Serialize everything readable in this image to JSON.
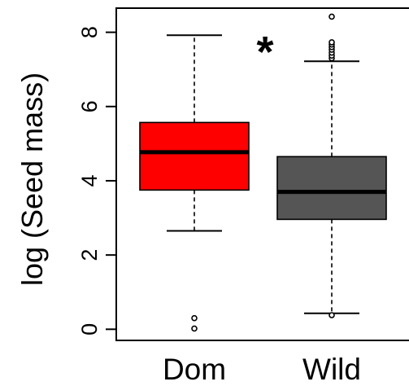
{
  "chart_data": {
    "type": "box",
    "title": "",
    "xlabel": "",
    "ylabel": "log (Seed mass)",
    "ylim": [
      -0.3,
      8.65
    ],
    "yticks": [
      0,
      2,
      4,
      6,
      8
    ],
    "tick_labels": [
      "0",
      "2",
      "4",
      "6",
      "8"
    ],
    "categories": [
      "Dom",
      "Wild"
    ],
    "annotation": "*",
    "grid": false,
    "boxes": [
      {
        "category": "Dom",
        "color": "#ff0000",
        "whisker_low": 2.65,
        "q1": 3.75,
        "median": 4.77,
        "q3": 5.57,
        "whisker_high": 7.92,
        "outliers": [
          0.3,
          0.02
        ]
      },
      {
        "category": "Wild",
        "color": "#555555",
        "whisker_low": 0.43,
        "q1": 2.96,
        "median": 3.7,
        "q3": 4.65,
        "whisker_high": 7.22,
        "outliers": [
          0.38,
          7.3,
          7.37,
          7.45,
          7.53,
          7.6,
          7.67,
          7.73,
          8.42
        ]
      }
    ]
  }
}
